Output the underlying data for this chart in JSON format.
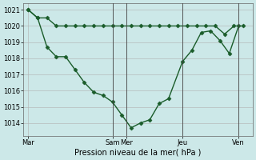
{
  "background_color": "#cce8e8",
  "grid_color": "#b0b0b0",
  "line_color": "#1a5c2a",
  "xlabel": "Pression niveau de la mer( hPa )",
  "ylim": [
    1013.2,
    1021.4
  ],
  "yticks": [
    1014,
    1015,
    1016,
    1017,
    1018,
    1019,
    1020,
    1021
  ],
  "x_day_labels": [
    "Mar",
    "Sam",
    "Mer",
    "Jeu",
    "Ven"
  ],
  "x_day_positions": [
    0,
    36,
    42,
    66,
    90
  ],
  "xlim": [
    -2,
    96
  ],
  "series1_x": [
    0,
    4,
    8,
    12,
    16,
    20,
    24,
    28,
    32,
    36,
    40,
    44,
    48,
    52,
    56,
    60,
    64,
    68,
    72,
    76,
    80,
    84,
    88,
    92
  ],
  "series1_y": [
    1021.0,
    1020.5,
    1020.5,
    1020.0,
    1020.0,
    1020.0,
    1020.0,
    1020.0,
    1020.0,
    1020.0,
    1020.0,
    1020.0,
    1020.0,
    1020.0,
    1020.0,
    1020.0,
    1020.0,
    1020.0,
    1020.0,
    1020.0,
    1020.0,
    1019.5,
    1020.0,
    1020.0
  ],
  "series2_x": [
    0,
    4,
    8,
    12,
    16,
    20,
    24,
    28,
    32,
    36,
    40,
    44,
    48,
    52,
    56,
    60,
    66,
    70,
    74,
    78,
    82,
    86,
    90
  ],
  "series2_y": [
    1021.0,
    1020.5,
    1018.7,
    1018.1,
    1018.1,
    1017.3,
    1016.5,
    1015.9,
    1015.7,
    1015.3,
    1014.5,
    1013.7,
    1014.0,
    1014.2,
    1015.2,
    1015.5,
    1017.8,
    1018.5,
    1019.6,
    1019.7,
    1019.1,
    1018.3,
    1020.0
  ],
  "vline_positions": [
    36,
    42,
    66,
    90
  ],
  "marker": "D",
  "markersize": 2.5,
  "linewidth": 1.0,
  "ylabel_fontsize": 6,
  "xlabel_fontsize": 7,
  "tick_labelsize": 6
}
